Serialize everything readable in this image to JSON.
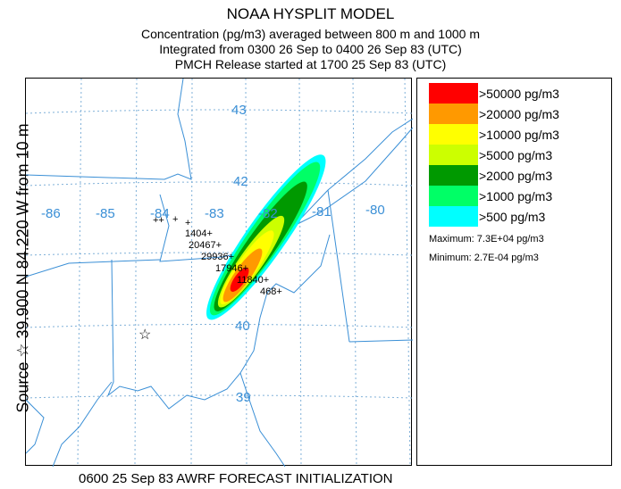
{
  "header": {
    "title": "NOAA HYSPLIT MODEL",
    "line1": "Concentration  (pg/m3) averaged between   800 m and  1000 m",
    "line2": "Integrated from 0300 26 Sep to 0400 26 Sep 83 (UTC)",
    "line3": "PMCH Release started at 1700 25 Sep 83 (UTC)"
  },
  "side_label": "Source ☆ 39.900  N  84.220  W    from   10 m",
  "footer": "0600 25 Sep 83 AWRF FORECAST INITIALIZATION",
  "map": {
    "lon_labels": [
      "-86",
      "-85",
      "-84",
      "-83",
      "-82",
      "-81",
      "-80"
    ],
    "lat_labels": [
      "43",
      "42",
      "40",
      "39"
    ],
    "source_icon": "star-icon",
    "grid_color": "#7fb0d8",
    "boundary_color": "#3a8fd6",
    "sample_values": [
      "1404",
      "20467",
      "29936",
      "17946",
      "11840",
      "468"
    ]
  },
  "legend": {
    "items": [
      {
        "label": ">50000 pg/m3",
        "color": "#ff0000"
      },
      {
        "label": ">20000 pg/m3",
        "color": "#ff9900"
      },
      {
        "label": ">10000 pg/m3",
        "color": "#ffff00"
      },
      {
        "label": ">5000 pg/m3",
        "color": "#ccff00"
      },
      {
        "label": ">2000 pg/m3",
        "color": "#009900"
      },
      {
        "label": ">1000 pg/m3",
        "color": "#00ff66"
      },
      {
        "label": ">500 pg/m3",
        "color": "#00ffff"
      }
    ],
    "maximum": "Maximum: 7.3E+04 pg/m3",
    "minimum": "Minimum: 2.7E-04 pg/m3"
  }
}
